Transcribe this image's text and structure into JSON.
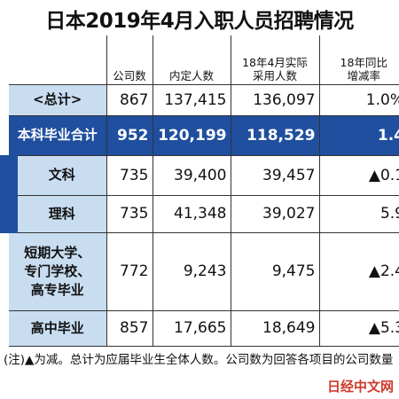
{
  "title": "日本2019年4月入职人员招聘情况",
  "table": {
    "header": [
      [],
      [
        "公司数"
      ],
      [
        "内定人数"
      ],
      [
        "18年4月实际",
        "采用人数"
      ],
      [
        "18年同比",
        "增减率"
      ]
    ],
    "rows": [
      [
        [
          "<总计>"
        ],
        "867",
        "137,415",
        "136,097",
        "1.0%"
      ],
      [
        [
          "本科毕业合计"
        ],
        "952",
        "120,199",
        "118,529",
        "1.4"
      ],
      [
        [
          "文科"
        ],
        "735",
        "39,400",
        "39,457",
        "▲0.1"
      ],
      [
        [
          "理科"
        ],
        "735",
        "41,348",
        "39,027",
        "5.9"
      ],
      [
        [
          "短期大学、",
          "专门学校、",
          "高专毕业"
        ],
        "772",
        "9,243",
        "9,475",
        "▲2.4"
      ],
      [
        [
          "高中毕业"
        ],
        "857",
        "17,665",
        "18,649",
        "▲5.3"
      ]
    ]
  },
  "note": "(注)▲为减。总计为应届毕业生全体人数。公司数为回答各项目的公司数量",
  "watermark": "日经中文网"
}
